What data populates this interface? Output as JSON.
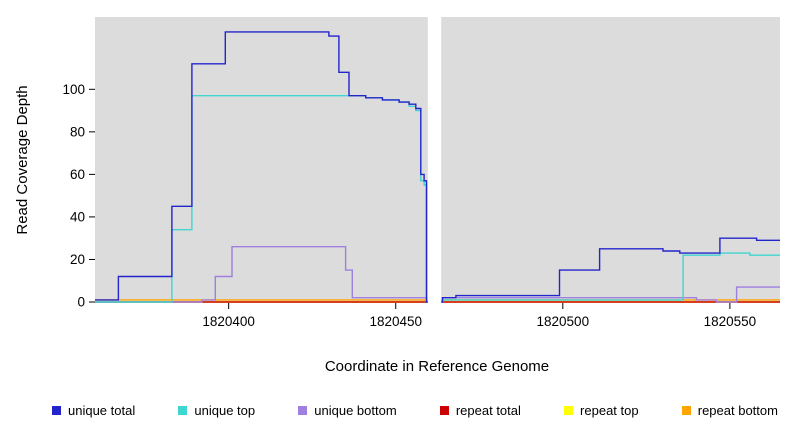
{
  "chart_data": {
    "type": "line",
    "step": true,
    "title": "",
    "xlabel": "Coordinate in Reference Genome",
    "ylabel": "Read Coverage Depth",
    "xlim": [
      1820360,
      1820565
    ],
    "ylim": [
      0,
      134
    ],
    "x_ticks": [
      1820400,
      1820450,
      1820500,
      1820550
    ],
    "y_ticks": [
      0,
      20,
      40,
      60,
      80,
      100
    ],
    "gap_region": [
      1820459.6,
      1820463.6
    ],
    "panel_color": "#DCDCDC",
    "figure_background": "#FFFFFF",
    "legend_position": "bottom",
    "series": [
      {
        "name": "unique total",
        "color": "#2424CC",
        "points": [
          [
            1820360,
            1
          ],
          [
            1820367,
            12
          ],
          [
            1820383,
            45
          ],
          [
            1820389,
            112
          ],
          [
            1820399,
            127
          ],
          [
            1820430,
            125
          ],
          [
            1820433,
            108
          ],
          [
            1820436,
            97
          ],
          [
            1820441,
            96
          ],
          [
            1820446,
            95
          ],
          [
            1820451,
            94
          ],
          [
            1820454,
            93
          ],
          [
            1820456,
            91
          ],
          [
            1820457.5,
            60
          ],
          [
            1820458.5,
            57
          ],
          [
            1820459.2,
            0
          ],
          [
            1820464,
            2
          ],
          [
            1820468,
            3
          ],
          [
            1820499,
            15
          ],
          [
            1820511,
            25
          ],
          [
            1820530,
            24
          ],
          [
            1820535,
            23
          ],
          [
            1820547,
            30
          ],
          [
            1820558,
            29
          ]
        ]
      },
      {
        "name": "unique top",
        "color": "#3FD6D0",
        "points": [
          [
            1820360,
            0
          ],
          [
            1820383,
            34
          ],
          [
            1820389,
            97
          ],
          [
            1820441,
            96
          ],
          [
            1820446,
            95
          ],
          [
            1820451,
            94
          ],
          [
            1820454,
            92
          ],
          [
            1820456,
            90
          ],
          [
            1820457.5,
            57
          ],
          [
            1820458.5,
            55
          ],
          [
            1820459.2,
            0
          ],
          [
            1820464,
            1
          ],
          [
            1820536,
            22
          ],
          [
            1820547,
            23
          ],
          [
            1820556,
            22
          ]
        ]
      },
      {
        "name": "unique bottom",
        "color": "#9F7FDF",
        "points": [
          [
            1820360,
            0
          ],
          [
            1820392,
            1
          ],
          [
            1820396,
            12
          ],
          [
            1820401,
            26
          ],
          [
            1820435,
            15
          ],
          [
            1820437,
            2
          ],
          [
            1820459.2,
            0
          ],
          [
            1820464,
            2
          ],
          [
            1820540,
            1
          ],
          [
            1820546,
            0
          ],
          [
            1820552,
            7
          ]
        ]
      },
      {
        "name": "repeat total",
        "color": "#CC0000",
        "points": [
          [
            1820360,
            0
          ]
        ]
      },
      {
        "name": "repeat top",
        "color": "#FFFF00",
        "points": [
          [
            1820360,
            0
          ]
        ]
      },
      {
        "name": "repeat bottom",
        "color": "#FFA500",
        "points": [
          [
            1820360,
            1
          ]
        ]
      }
    ]
  },
  "legend": {
    "items": [
      {
        "label": "unique total",
        "color": "#2424CC"
      },
      {
        "label": "unique top",
        "color": "#3FD6D0"
      },
      {
        "label": "unique bottom",
        "color": "#9F7FDF"
      },
      {
        "label": "repeat total",
        "color": "#CC0000"
      },
      {
        "label": "repeat top",
        "color": "#FFFF00"
      },
      {
        "label": "repeat bottom",
        "color": "#FFA500"
      }
    ]
  }
}
